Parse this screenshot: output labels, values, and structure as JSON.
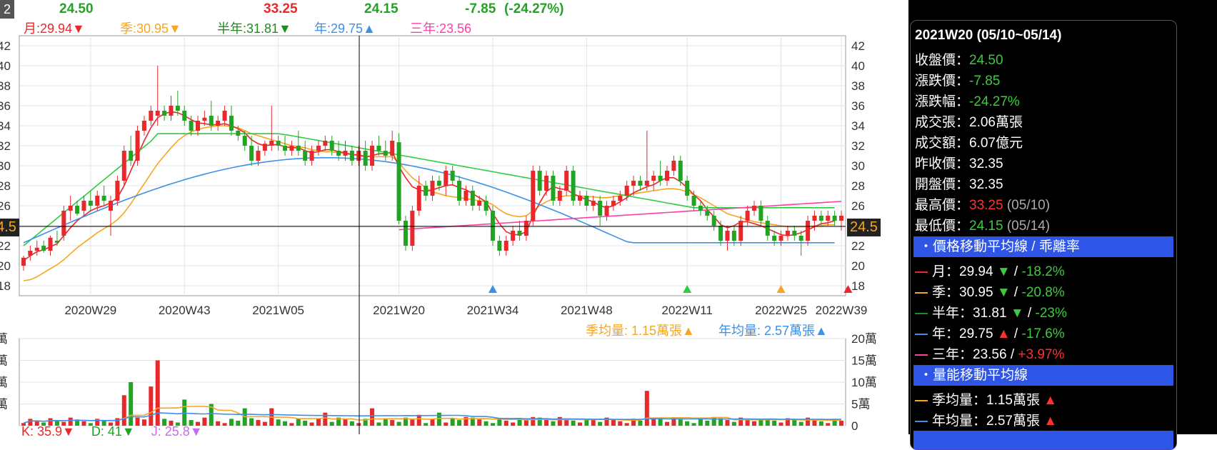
{
  "header": {
    "close": "24.50",
    "high": "33.25",
    "low": "24.15",
    "change": "-7.85",
    "change_pct": "(-24.27%)",
    "ma_month": "月:29.94▼",
    "ma_quarter": "季:30.95▼",
    "ma_half": "半年:31.81▼",
    "ma_year": "年:29.75▲",
    "ma_3year": "三年:23.56"
  },
  "price_axis": {
    "left_labels": [
      "42",
      "40",
      "38",
      "36",
      "34",
      "32",
      "30",
      "28",
      "26",
      "",
      "22",
      "20",
      "18"
    ],
    "right_labels": [
      "42",
      "40",
      "38",
      "36",
      "34",
      "32",
      "30",
      "28",
      "26",
      "",
      "22",
      "20",
      "18"
    ],
    "current_label": "24.5",
    "left_current_label": "24.5",
    "tick_values": [
      42,
      40,
      38,
      36,
      34,
      32,
      30,
      28,
      26,
      24,
      22,
      20,
      18
    ]
  },
  "volume_axis": {
    "left_labels": [
      "萬",
      "萬",
      "萬",
      "萬"
    ],
    "right_labels": [
      "20萬",
      "15萬",
      "10萬",
      "5萬",
      "0"
    ]
  },
  "x_labels": [
    "2020W29",
    "2020W43",
    "2021W05",
    "2021W20",
    "2021W34",
    "2021W48",
    "2022W11",
    "2022W25",
    "2022W39"
  ],
  "volume_averages": {
    "quarter": "季均量: 1.15萬張▲",
    "year": "年均量: 2.57萬張▲"
  },
  "bottom_indicator": {
    "k": "K: 35.9▼",
    "d": "D: 41▼",
    "j": "J: 25.8▼"
  },
  "tooltip": {
    "title": "2021W20 (05/10~05/14)",
    "close_label": "收盤價：",
    "close_value": "24.50",
    "change_label": "漲跌價：",
    "change_value": "-7.85",
    "change_pct_label": "漲跌幅：",
    "change_pct_value": "-24.27%",
    "volume_label": "成交張：",
    "volume_value": "2.06萬張",
    "amount_label": "成交額：",
    "amount_value": "6.07億元",
    "prev_close_label": "昨收價：",
    "prev_close_value": "32.35",
    "open_label": "開盤價：",
    "open_value": "32.35",
    "high_label": "最高價：",
    "high_value": "33.25",
    "high_date": "(05/10)",
    "low_label": "最低價：",
    "low_value": "24.15",
    "low_date": "(05/14)",
    "section_ma": "・價格移動平均線 / 乖離率",
    "ma_month_label": "月：",
    "ma_month_value": "29.94",
    "ma_month_dev": "-18.2%",
    "ma_quarter_label": "季：",
    "ma_quarter_value": "30.95",
    "ma_quarter_dev": "-20.8%",
    "ma_half_label": "半年：",
    "ma_half_value": "31.81",
    "ma_half_dev": "-23%",
    "ma_year_label": "年：",
    "ma_year_value": "29.75",
    "ma_year_dev": "-17.6%",
    "ma_3year_label": "三年：",
    "ma_3year_value": "23.56",
    "ma_3year_dev": "+3.97%",
    "section_vol": "・量能移動平均線",
    "vol_quarter_label": "季均量：",
    "vol_quarter_value": "1.15萬張",
    "vol_year_label": "年均量：",
    "vol_year_value": "2.57萬張"
  },
  "colors": {
    "up": "#e8282b",
    "down": "#23a323",
    "ma_month": "#e8282b",
    "ma_quarter": "#f5a623",
    "ma_half": "#2ecc40",
    "ma_year": "#3d8fe8",
    "ma_3year": "#ff3fa4"
  },
  "chart_data": {
    "type": "candlestick",
    "xlabel": "",
    "ylabel": "",
    "ylim": [
      18,
      42
    ],
    "volume_ylim": [
      0,
      20
    ],
    "volume_unit": "萬",
    "x_ticks": [
      "2020W29",
      "2020W43",
      "2021W05",
      "2021W20",
      "2021W34",
      "2021W48",
      "2022W11",
      "2022W25",
      "2022W39"
    ],
    "candles_ohlc": [
      [
        20,
        21,
        19.5,
        20.8
      ],
      [
        21,
        22,
        20.5,
        21.5
      ],
      [
        21.5,
        22.5,
        21,
        21.8
      ],
      [
        22,
        22.5,
        21.3,
        21.5
      ],
      [
        21.5,
        23,
        21,
        22.8
      ],
      [
        22.5,
        23.5,
        22,
        22.3
      ],
      [
        23,
        26,
        22.5,
        25.5
      ],
      [
        25.5,
        27,
        24.5,
        26
      ],
      [
        26,
        26.5,
        25,
        25.2
      ],
      [
        25.5,
        27,
        25,
        26.5
      ],
      [
        26.5,
        27.5,
        25.5,
        26
      ],
      [
        26,
        27.5,
        25.5,
        27
      ],
      [
        27,
        28,
        26,
        26.5
      ],
      [
        25.5,
        27,
        23,
        26.5
      ],
      [
        26.5,
        29,
        26,
        28.5
      ],
      [
        28.5,
        32,
        28,
        31.5
      ],
      [
        31.5,
        33,
        30,
        30.5
      ],
      [
        30.5,
        34,
        30,
        33.5
      ],
      [
        33.5,
        35,
        33,
        34.5
      ],
      [
        34.5,
        36,
        34,
        35.5
      ],
      [
        35,
        40,
        34,
        35.5
      ],
      [
        35.5,
        36,
        34.5,
        35
      ],
      [
        35,
        37,
        34.5,
        36
      ],
      [
        36,
        37.5,
        35,
        35.5
      ],
      [
        35.5,
        36,
        34,
        34.5
      ],
      [
        34.5,
        35,
        33,
        33.5
      ],
      [
        33.5,
        35,
        33,
        34.5
      ],
      [
        34.5,
        35.5,
        34,
        34.8
      ],
      [
        35,
        36.5,
        33.5,
        34
      ],
      [
        34,
        35,
        33.5,
        34.5
      ],
      [
        34.5,
        36,
        34,
        35.5
      ],
      [
        35,
        36,
        33,
        33.5
      ],
      [
        33.5,
        34,
        32.5,
        33
      ],
      [
        33,
        33.5,
        31.5,
        32
      ],
      [
        32,
        33,
        30,
        30.5
      ],
      [
        30.5,
        32,
        30,
        31.5
      ],
      [
        31.5,
        32.5,
        31,
        32.2
      ],
      [
        32,
        36,
        31.5,
        32.5
      ],
      [
        32.5,
        33,
        31.5,
        32
      ],
      [
        32,
        33,
        31,
        31.5
      ],
      [
        31.5,
        32.5,
        31,
        32
      ],
      [
        32,
        33.5,
        31,
        31.5
      ],
      [
        31.5,
        32.5,
        30,
        30.5
      ],
      [
        30.5,
        32,
        30,
        31.5
      ],
      [
        31.5,
        32.5,
        31,
        32
      ],
      [
        32,
        33,
        31.5,
        32.5
      ],
      [
        32.5,
        33,
        31,
        31.5
      ],
      [
        31.5,
        32.5,
        30.5,
        31
      ],
      [
        31,
        32.5,
        30.5,
        31.5
      ],
      [
        31.5,
        32,
        30,
        30.5
      ],
      [
        30.5,
        32,
        30,
        31.5
      ],
      [
        31.5,
        32.5,
        29.5,
        30
      ],
      [
        30,
        32.5,
        29.5,
        32
      ],
      [
        32,
        33,
        31,
        31.5
      ],
      [
        31.5,
        32.5,
        30.5,
        31
      ],
      [
        31,
        33.5,
        30.5,
        32.5
      ],
      [
        32.35,
        33.25,
        24.15,
        24.5
      ],
      [
        24.5,
        25,
        21.5,
        22
      ],
      [
        22,
        26,
        21.5,
        25.5
      ],
      [
        25.5,
        29,
        25,
        28
      ],
      [
        28,
        28.5,
        26.5,
        27
      ],
      [
        27,
        29,
        26.5,
        28.5
      ],
      [
        28.5,
        29,
        27.5,
        28
      ],
      [
        28,
        30,
        27,
        29.5
      ],
      [
        29.5,
        30,
        28,
        28.5
      ],
      [
        28.5,
        29,
        26,
        26.5
      ],
      [
        26.5,
        28,
        26,
        27.5
      ],
      [
        27.5,
        28,
        25.5,
        26
      ],
      [
        26,
        27,
        25.5,
        26.5
      ],
      [
        26.5,
        27,
        25,
        25.5
      ],
      [
        25.5,
        26,
        22,
        22.5
      ],
      [
        22.5,
        23,
        21,
        21.5
      ],
      [
        21.5,
        23,
        21,
        22.5
      ],
      [
        22.5,
        24,
        22,
        23.5
      ],
      [
        23.5,
        24.5,
        22.5,
        23
      ],
      [
        23,
        25,
        22.5,
        24.5
      ],
      [
        24.5,
        30,
        24,
        29.5
      ],
      [
        29.5,
        30,
        27,
        27.5
      ],
      [
        27.5,
        29.5,
        27,
        29
      ],
      [
        29,
        29.5,
        26,
        26.5
      ],
      [
        26.5,
        28,
        26,
        27.5
      ],
      [
        27.5,
        30,
        27,
        29.5
      ],
      [
        29.5,
        30,
        26,
        26.5
      ],
      [
        26.5,
        27.5,
        26,
        27
      ],
      [
        27,
        27.5,
        25.5,
        26
      ],
      [
        26,
        27,
        25.5,
        26.5
      ],
      [
        26.5,
        27,
        24,
        25
      ],
      [
        25,
        26.5,
        24.5,
        26
      ],
      [
        26,
        27,
        25.5,
        26.5
      ],
      [
        26.5,
        27.5,
        26,
        27
      ],
      [
        27,
        28.5,
        26.5,
        28
      ],
      [
        28,
        29,
        27,
        28.5
      ],
      [
        28.5,
        29,
        27.5,
        28
      ],
      [
        28,
        33.5,
        27.5,
        28.5
      ],
      [
        28.5,
        29.5,
        27.5,
        29
      ],
      [
        29,
        30.5,
        28,
        28.5
      ],
      [
        28.5,
        30,
        28,
        29.5
      ],
      [
        29.5,
        31,
        29,
        30.5
      ],
      [
        30.5,
        31,
        28,
        28.5
      ],
      [
        28.5,
        29,
        26.5,
        27
      ],
      [
        27,
        27.5,
        25.5,
        26
      ],
      [
        26,
        26.5,
        25,
        25.5
      ],
      [
        25.5,
        26,
        24.5,
        25
      ],
      [
        25,
        25.5,
        23.5,
        24
      ],
      [
        24,
        24.5,
        22,
        22.5
      ],
      [
        22.5,
        24,
        21.5,
        23.5
      ],
      [
        23.5,
        24,
        22,
        22.5
      ],
      [
        22.5,
        25,
        22,
        24.5
      ],
      [
        24.5,
        26,
        24,
        25.5
      ],
      [
        25.5,
        26.5,
        25,
        26
      ],
      [
        26,
        26.5,
        24,
        24.5
      ],
      [
        24.5,
        25,
        22.5,
        23
      ],
      [
        23,
        23.5,
        22,
        22.5
      ],
      [
        22.5,
        23.5,
        22,
        23
      ],
      [
        23,
        24,
        22.5,
        23.5
      ],
      [
        23.5,
        24,
        22.5,
        23
      ],
      [
        23,
        23.5,
        21,
        22.5
      ],
      [
        22.5,
        25,
        22,
        24.5
      ],
      [
        24.5,
        25.5,
        23.5,
        25
      ],
      [
        25,
        25.5,
        24,
        24.5
      ],
      [
        24.5,
        25.5,
        24,
        25
      ],
      [
        25,
        25.5,
        24,
        24.5
      ],
      [
        24.5,
        25.5,
        23.5,
        25
      ]
    ],
    "ma_month": [
      20.5,
      21,
      21.4,
      21.6,
      21.9,
      22.2,
      23,
      23.8,
      24.5,
      25,
      25.5,
      25.8,
      26,
      26.3,
      26.8,
      28,
      29.5,
      31,
      32.5,
      33.8,
      34.8,
      35.2,
      35.4,
      35.3,
      35,
      34.6,
      34.3,
      34.2,
      34.1,
      34.1,
      34.2,
      34,
      33.7,
      33.3,
      32.6,
      32.2,
      32,
      32.1,
      32.1,
      31.9,
      31.8,
      31.8,
      31.5,
      31.3,
      31.4,
      31.6,
      31.6,
      31.4,
      31.3,
      31.1,
      31.1,
      30.9,
      31,
      31.2,
      31.2,
      31.4,
      29.9,
      28.8,
      27.9,
      27.6,
      27.4,
      27.6,
      27.8,
      28,
      28.1,
      27.8,
      27.6,
      27.2,
      26.8,
      26.4,
      25.2,
      24.2,
      23.4,
      23.1,
      23.1,
      23.4,
      25,
      26.3,
      27.4,
      27.9,
      27.7,
      27.6,
      27.2,
      26.9,
      26.6,
      26.4,
      26,
      25.8,
      26,
      26.4,
      26.8,
      27.3,
      27.6,
      27.9,
      28.1,
      28.5,
      28.8,
      28.8,
      28.4,
      27.8,
      27.1,
      26.5,
      25.6,
      24.9,
      24.1,
      23.8,
      24,
      24.4,
      24.4,
      24.2,
      24,
      23.7,
      23.4,
      23.1,
      23,
      23.1,
      23.3,
      23.6,
      23.9,
      24.2,
      24.3,
      24.5
    ],
    "ma_quarter": [
      18.5,
      18.6,
      18.9,
      19.3,
      19.7,
      20.1,
      20.6,
      21.2,
      21.8,
      22.3,
      22.8,
      23.3,
      23.7,
      24.1,
      24.6,
      25.3,
      26.2,
      27.2,
      28.2,
      29.2,
      30.2,
      31,
      31.8,
      32.5,
      33,
      33.4,
      33.6,
      33.8,
      33.9,
      34,
      34,
      33.9,
      33.8,
      33.5,
      33.2,
      33,
      32.8,
      32.6,
      32.4,
      32.2,
      32,
      31.9,
      31.8,
      31.6,
      31.5,
      31.4,
      31.4,
      31.3,
      31.2,
      31.1,
      31,
      30.9,
      30.9,
      30.9,
      30.9,
      30.9,
      30.3,
      29.5,
      28.8,
      28.3,
      27.8,
      27.4,
      27.2,
      27,
      26.9,
      26.8,
      26.7,
      26.6,
      26.5,
      26.4,
      26.1,
      25.6,
      25.2,
      25,
      24.9,
      25,
      25.5,
      26,
      26.4,
      26.7,
      26.9,
      27,
      27,
      27,
      26.9,
      26.9,
      26.8,
      26.8,
      26.9,
      27,
      27.1,
      27.2,
      27.3,
      27.4,
      27.5,
      27.6,
      27.7,
      27.7,
      27.6,
      27.4,
      27.1,
      26.8,
      26.4,
      26,
      25.6,
      25.2,
      25,
      24.8,
      24.6,
      24.4,
      24.3,
      24.2,
      24.1,
      24,
      23.9,
      23.9,
      23.9,
      23.9,
      24,
      24,
      24.1,
      24.1
    ]
  }
}
